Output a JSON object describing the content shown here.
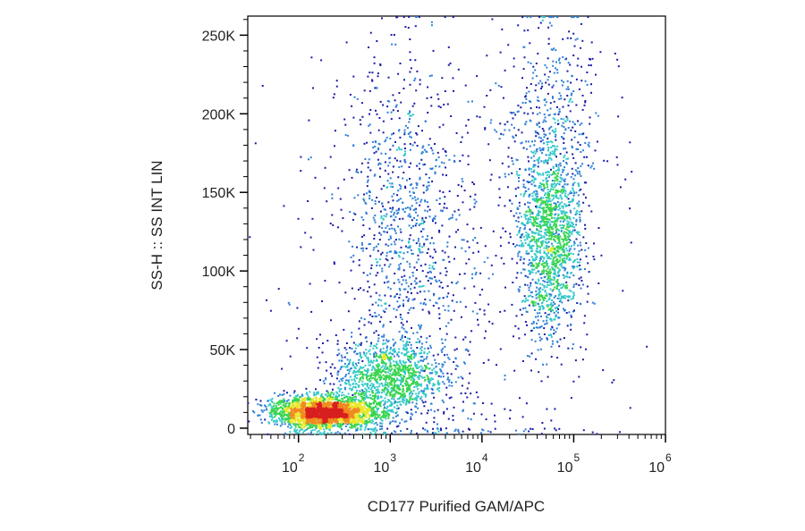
{
  "chart_data": {
    "type": "scatter",
    "subtype": "flow-cytometry-density-dot-plot",
    "xlabel": "CD177 Purified GAM/APC",
    "ylabel": "SS-H :: SS INT LIN",
    "x_scale": "log",
    "y_scale": "linear",
    "xlim": [
      28,
      1000000
    ],
    "ylim": [
      -4000,
      262144
    ],
    "x_ticks": [
      {
        "value": 100,
        "label": "10",
        "exp": "2"
      },
      {
        "value": 1000,
        "label": "10",
        "exp": "3"
      },
      {
        "value": 10000,
        "label": "10",
        "exp": "4"
      },
      {
        "value": 100000,
        "label": "10",
        "exp": "5"
      },
      {
        "value": 1000000,
        "label": "10",
        "exp": "6"
      }
    ],
    "y_ticks": [
      {
        "value": 0,
        "label": "0"
      },
      {
        "value": 50000,
        "label": "50K"
      },
      {
        "value": 100000,
        "label": "100K"
      },
      {
        "value": 150000,
        "label": "150K"
      },
      {
        "value": 200000,
        "label": "200K"
      },
      {
        "value": 250000,
        "label": "250K"
      }
    ],
    "density_colors": [
      "#1a1aa8",
      "#2d7fd6",
      "#32c8c8",
      "#37d44e",
      "#e8e82a",
      "#f08a1e",
      "#d81e1e"
    ],
    "populations": [
      {
        "x_center": 200,
        "x_spread_decades": 0.28,
        "y_center": 10000,
        "y_spread": 5000,
        "count": 2600
      },
      {
        "x_center": 1000,
        "x_spread_decades": 0.3,
        "y_center": 32000,
        "y_spread": 12000,
        "count": 1100
      },
      {
        "x_center": 1500,
        "x_spread_decades": 0.35,
        "y_center": 130000,
        "y_spread": 55000,
        "count": 900
      },
      {
        "x_center": 55000,
        "x_spread_decades": 0.17,
        "y_center": 120000,
        "y_spread": 30000,
        "count": 1500
      },
      {
        "x_center": 55000,
        "x_spread_decades": 0.3,
        "y_center": 190000,
        "y_spread": 40000,
        "count": 500
      },
      {
        "x_center": 3000,
        "x_spread_decades": 0.9,
        "y_center": 70000,
        "y_spread": 70000,
        "count": 500
      }
    ]
  }
}
